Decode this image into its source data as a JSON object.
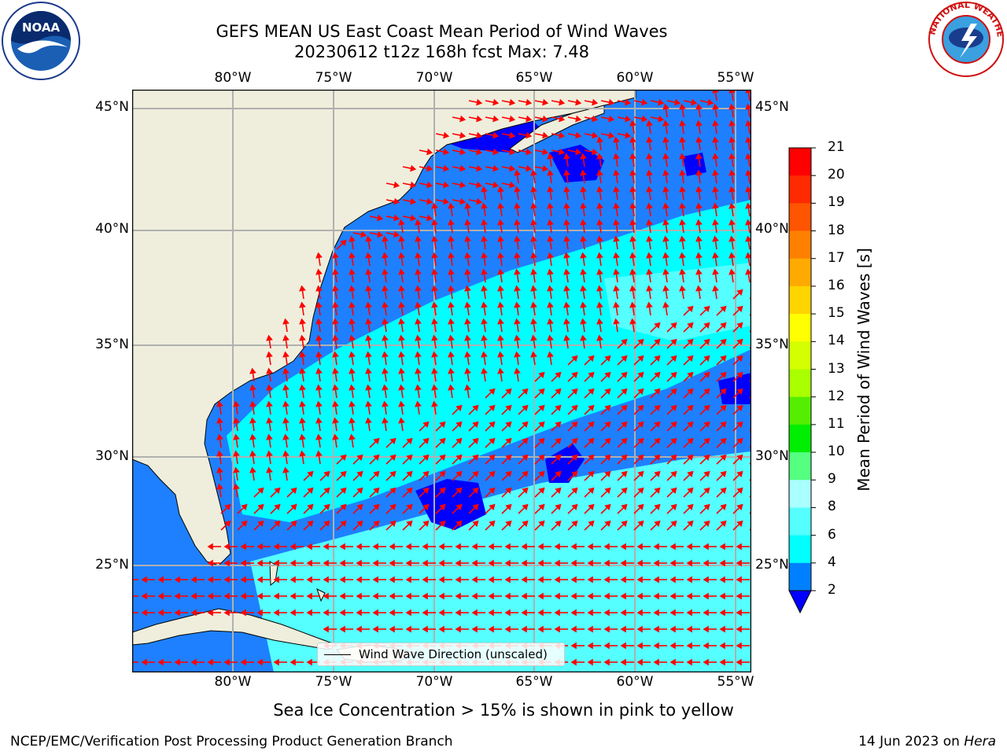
{
  "title_line1": "GEFS MEAN US East Coast Mean Period of Wind Waves",
  "title_line2": "20230612 t12z 168h fcst   Max: 7.48",
  "lon_ticks": [
    "80°W",
    "75°W",
    "70°W",
    "65°W",
    "60°W",
    "55°W"
  ],
  "lat_ticks": [
    "45°N",
    "40°N",
    "35°N",
    "30°N",
    "25°N"
  ],
  "colorbar": {
    "label": "Mean Period of Wind Waves [s]",
    "ticks": [
      "21",
      "20",
      "19",
      "18",
      "17",
      "16",
      "15",
      "14",
      "13",
      "12",
      "11",
      "10",
      "9",
      "8",
      "6",
      "4",
      "2"
    ],
    "colors": [
      "#ff0000",
      "#ff2a00",
      "#ff5500",
      "#ff8000",
      "#ffaa00",
      "#ffd400",
      "#ffff00",
      "#d4ff00",
      "#aaff00",
      "#55ee00",
      "#00ee00",
      "#55ff80",
      "#aaffff",
      "#55ffff",
      "#00ffff",
      "#0080ff",
      "#0000ff"
    ]
  },
  "legend_text": "Wind Wave Direction (unscaled)",
  "ice_note": "Sea Ice Concentration > 15% is shown in pink to yellow",
  "footer_left": "NCEP/EMC/Verification Post Processing Product Generation Branch",
  "footer_date": "14 Jun 2023 on ",
  "footer_machine": "Hera",
  "logos": {
    "noaa": "NOAA",
    "nws": "NATIONAL WEATHER SERVICE"
  },
  "map_colors": {
    "land": "#efeedc",
    "band_2_4": "#1e80ff",
    "band_4_6": "#00ffff",
    "band_6_8": "#55ffff",
    "band_under_2": "#0000ff",
    "arrow": "#ff0000",
    "grid": "#b0b0b0"
  }
}
